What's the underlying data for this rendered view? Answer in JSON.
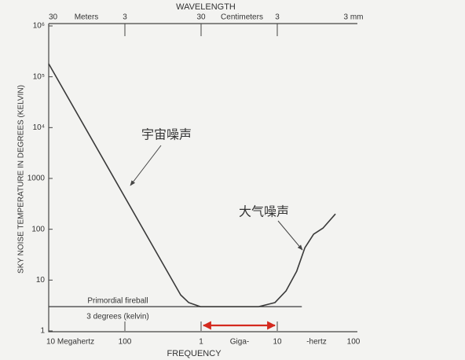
{
  "chart_data": {
    "type": "line",
    "title": "WAVELENGTH",
    "x_label": "FREQUENCY",
    "y_label": "SKY NOISE TEMPERATURE IN DEGREES (KELVIN)",
    "log_x": true,
    "log_y": true,
    "xlim": [
      10,
      100000
    ],
    "ylim": [
      1,
      1000000
    ],
    "xticks": [
      {
        "value": 10,
        "label": "10 Megahertz"
      },
      100,
      {
        "value": 1000,
        "label": "1"
      },
      {
        "value": 10000,
        "label": "10"
      },
      {
        "value": 100000,
        "label": "100"
      }
    ],
    "x_unit_labels": [
      "Giga-",
      "-hertz"
    ],
    "x2ticks": [
      {
        "value": 10,
        "label": "30"
      },
      {
        "value": 100,
        "label": "3"
      },
      {
        "value": 1000,
        "label": "30"
      },
      {
        "value": 10000,
        "label": "3"
      },
      {
        "value": 100000,
        "label": "3 mm"
      }
    ],
    "x2_unit_labels": [
      "Meters",
      "Centimeters"
    ],
    "yticks": [
      1,
      10,
      100,
      1000,
      {
        "value": 10000,
        "label": "10⁴"
      },
      {
        "value": 100000,
        "label": "10⁵"
      },
      {
        "value": 1000000,
        "label": "10⁶"
      }
    ],
    "series": [
      {
        "color": "#3a3a3a",
        "x": [
          10,
          540,
          690,
          980,
          5700,
          9300,
          13000,
          18000,
          23000,
          30000,
          40000,
          58000
        ],
        "values": [
          180000,
          5.1,
          3.6,
          3,
          3,
          3.6,
          6.1,
          15,
          43,
          80,
          106,
          200
        ]
      }
    ],
    "reference_line": {
      "label": "Primordial fireball",
      "sublabel": "3 degrees (kelvin)",
      "x": [
        10,
        21000
      ],
      "value": 3,
      "color": "#3a3a3a"
    },
    "annotations": [
      {
        "text": "宇宙噪声",
        "color": "#1a8fe0"
      },
      {
        "text": "大气噪声",
        "color": "#1a8fe0"
      }
    ],
    "highlight": {
      "x": [
        1000,
        10000
      ],
      "color": "#d42a1f"
    }
  }
}
